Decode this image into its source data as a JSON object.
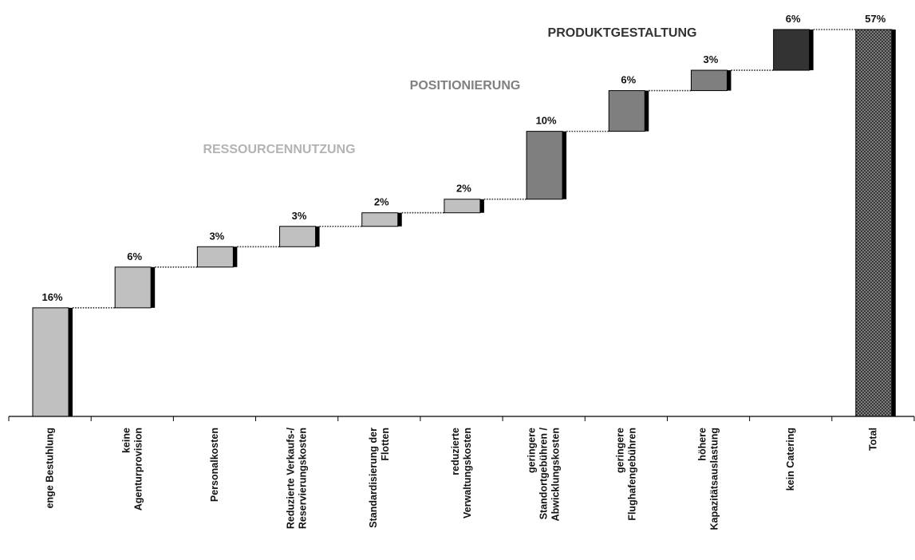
{
  "chart_data": {
    "type": "bar",
    "subtype": "waterfall",
    "title": "",
    "xlabel": "",
    "ylabel": "",
    "ylim": [
      0,
      57
    ],
    "grid": false,
    "legend": "none",
    "categories": [
      [
        "enge Bestuhlung"
      ],
      [
        "keine",
        "Agenturprovision"
      ],
      [
        "Personalkosten"
      ],
      [
        "Reduzierte Verkaufs-/",
        "Reservierungskosten"
      ],
      [
        "Standardisierung der",
        "Flotten"
      ],
      [
        "reduzierte",
        "Verwaltungskosten"
      ],
      [
        "geringere",
        "Standortgebühren /",
        "Abwicklungskosten"
      ],
      [
        "geringere",
        "Flughafengebühren"
      ],
      [
        "höhere",
        "Kapazitätsauslastung"
      ],
      [
        "kein Catering"
      ],
      [
        "Total"
      ]
    ],
    "values": [
      16,
      6,
      3,
      3,
      2,
      2,
      10,
      6,
      3,
      6,
      57
    ],
    "value_labels": [
      "16%",
      "6%",
      "3%",
      "3%",
      "2%",
      "2%",
      "10%",
      "6%",
      "3%",
      "6%",
      "57%"
    ],
    "groups": [
      {
        "name": "RESSOURCENNUTZUNG",
        "color": "#c0c0c0",
        "members": [
          0,
          1,
          2,
          3,
          4,
          5
        ]
      },
      {
        "name": "POSITIONIERUNG",
        "color": "#7f7f7f",
        "members": [
          6,
          7,
          8
        ]
      },
      {
        "name": "PRODUKTGESTALTUNG",
        "color": "#333333",
        "members": [
          9
        ]
      }
    ],
    "total_index": 10,
    "total_pattern": "crosshatch",
    "colors": {
      "ressourcen_fill": "#c0c0c0",
      "ressourcen_text": "#b3b3b3",
      "positionierung_fill": "#7f7f7f",
      "positionierung_text": "#808080",
      "produkt_fill": "#333333",
      "produkt_text": "#333333",
      "total_fill": "#2a2a2a",
      "axis": "#000000"
    }
  }
}
